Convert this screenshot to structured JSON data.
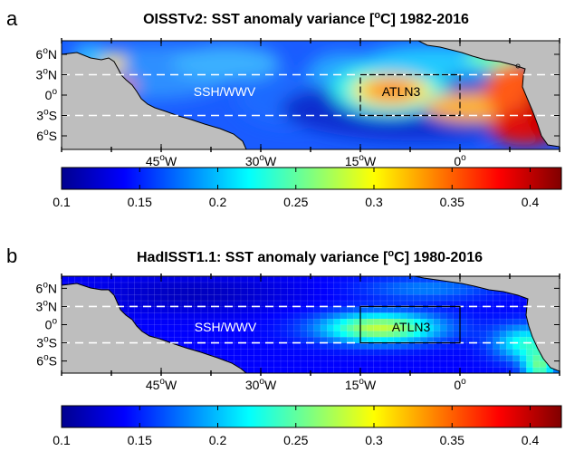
{
  "panels": [
    {
      "id": "a",
      "letter": "a",
      "title": "OISSTv2: SST anomaly variance [°C] 1982-2016",
      "title_main": "OISSTv2: SST anomaly variance [",
      "title_deg": "o",
      "title_tail": "C] 1982-2016",
      "region_labels": [
        "SSH/WWV",
        "ATLN3"
      ],
      "style": "smooth"
    },
    {
      "id": "b",
      "letter": "b",
      "title": "HadISST1.1: SST anomaly variance [°C] 1980-2016",
      "title_main": "HadISST1.1: SST anomaly variance [",
      "title_deg": "o",
      "title_tail": "C] 1980-2016",
      "region_labels": [
        "SSH/WWV",
        "ATLN3"
      ],
      "style": "gridded"
    }
  ],
  "lat_ticks": [
    {
      "value": 6,
      "num": "6",
      "hemi": "N"
    },
    {
      "value": 3,
      "num": "3",
      "hemi": "N"
    },
    {
      "value": 0,
      "num": "0",
      "hemi": ""
    },
    {
      "value": -3,
      "num": "3",
      "hemi": "S"
    },
    {
      "value": -6,
      "num": "6",
      "hemi": "S"
    }
  ],
  "lon_ticks": [
    {
      "value": -45,
      "num": "45",
      "hemi": "W"
    },
    {
      "value": -30,
      "num": "30",
      "hemi": "W"
    },
    {
      "value": -15,
      "num": "15",
      "hemi": "W"
    },
    {
      "value": 0,
      "num": "0",
      "hemi": ""
    }
  ],
  "lon_range": [
    -60,
    15
  ],
  "lat_range": [
    -8,
    8
  ],
  "dashed_lats": [
    3,
    -3
  ],
  "atln3_box": {
    "lon": [
      -15,
      0
    ],
    "lat": [
      -3,
      3
    ]
  },
  "colorbar": {
    "range": [
      0.1,
      0.42
    ],
    "ticks": [
      0.1,
      0.15,
      0.2,
      0.25,
      0.3,
      0.35,
      0.4
    ],
    "tick_labels": [
      "0.1",
      "0.15",
      "0.2",
      "0.25",
      "0.3",
      "0.35",
      "0.4"
    ],
    "colormap": "jet"
  },
  "colors": {
    "land": "#bebebe",
    "coast": "#000000",
    "dashes": "#ffffff"
  }
}
